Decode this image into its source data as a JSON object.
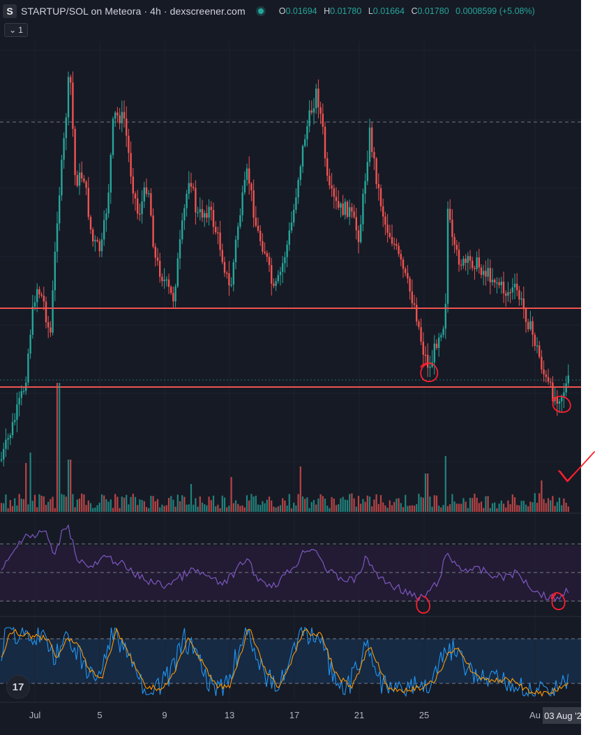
{
  "header": {
    "logo_letter": "S",
    "title": "STARTUP/SOL on Meteora · 4h · dexscreener.com",
    "ohlc": {
      "o_label": "O",
      "o_value": "0.01694",
      "h_label": "H",
      "h_value": "0.01780",
      "l_label": "L",
      "l_value": "0.01664",
      "c_label": "C",
      "c_value": "0.01780",
      "change": "0.0008599 (+5.08%)"
    },
    "toggle_label": "1"
  },
  "colors": {
    "background": "#161a25",
    "up": "#26a69a",
    "down": "#ef5350",
    "rsi_line": "#7e57c2",
    "stoch_k": "#2196f3",
    "stoch_d": "#ff9800",
    "annotation": "#ff1f2d"
  },
  "tv_logo": "17",
  "x_axis": {
    "ticks": [
      "Jul",
      "5",
      "9",
      "13",
      "17",
      "21",
      "25",
      "Au"
    ],
    "current_date": "03 Aug '2"
  },
  "chart_data": [
    {
      "type": "candlestick",
      "pane": "price",
      "timeframe": "4h",
      "x_range": [
        "Jun 28",
        "Aug 3"
      ],
      "horizontal_lines": [
        "resistance-line",
        "support-line"
      ],
      "grid": true,
      "last_ohlc": {
        "open": 0.01694,
        "high": 0.0178,
        "low": 0.01664,
        "close": 0.0178
      }
    },
    {
      "type": "bar",
      "pane": "volume",
      "series": [
        {
          "values_shape": "tall spikes near Jul 2, Jul 3, Jul 17, Jul 25, Aug 2"
        }
      ]
    },
    {
      "type": "line",
      "pane": "rsi",
      "bands": [
        30,
        50,
        70
      ],
      "annotated_lows": [
        "Jul 25",
        "Aug 3"
      ]
    },
    {
      "type": "line",
      "pane": "stochastic",
      "series_colors": [
        "#2196f3",
        "#ff9800"
      ],
      "bands": [
        20,
        80
      ]
    }
  ]
}
